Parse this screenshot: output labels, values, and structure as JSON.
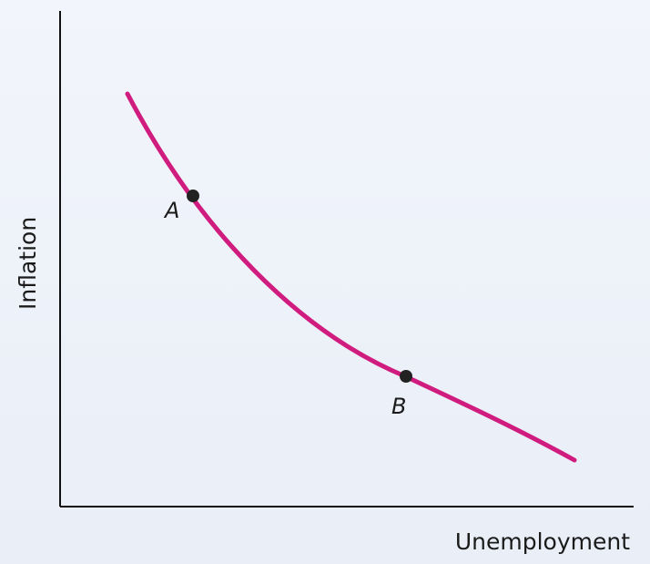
{
  "diagram": {
    "axes": {
      "y_label": "Inflation",
      "x_label": "Unemployment"
    },
    "curve": {
      "color": "#d01b7f"
    },
    "points": [
      {
        "label": "A"
      },
      {
        "label": "B"
      }
    ]
  }
}
